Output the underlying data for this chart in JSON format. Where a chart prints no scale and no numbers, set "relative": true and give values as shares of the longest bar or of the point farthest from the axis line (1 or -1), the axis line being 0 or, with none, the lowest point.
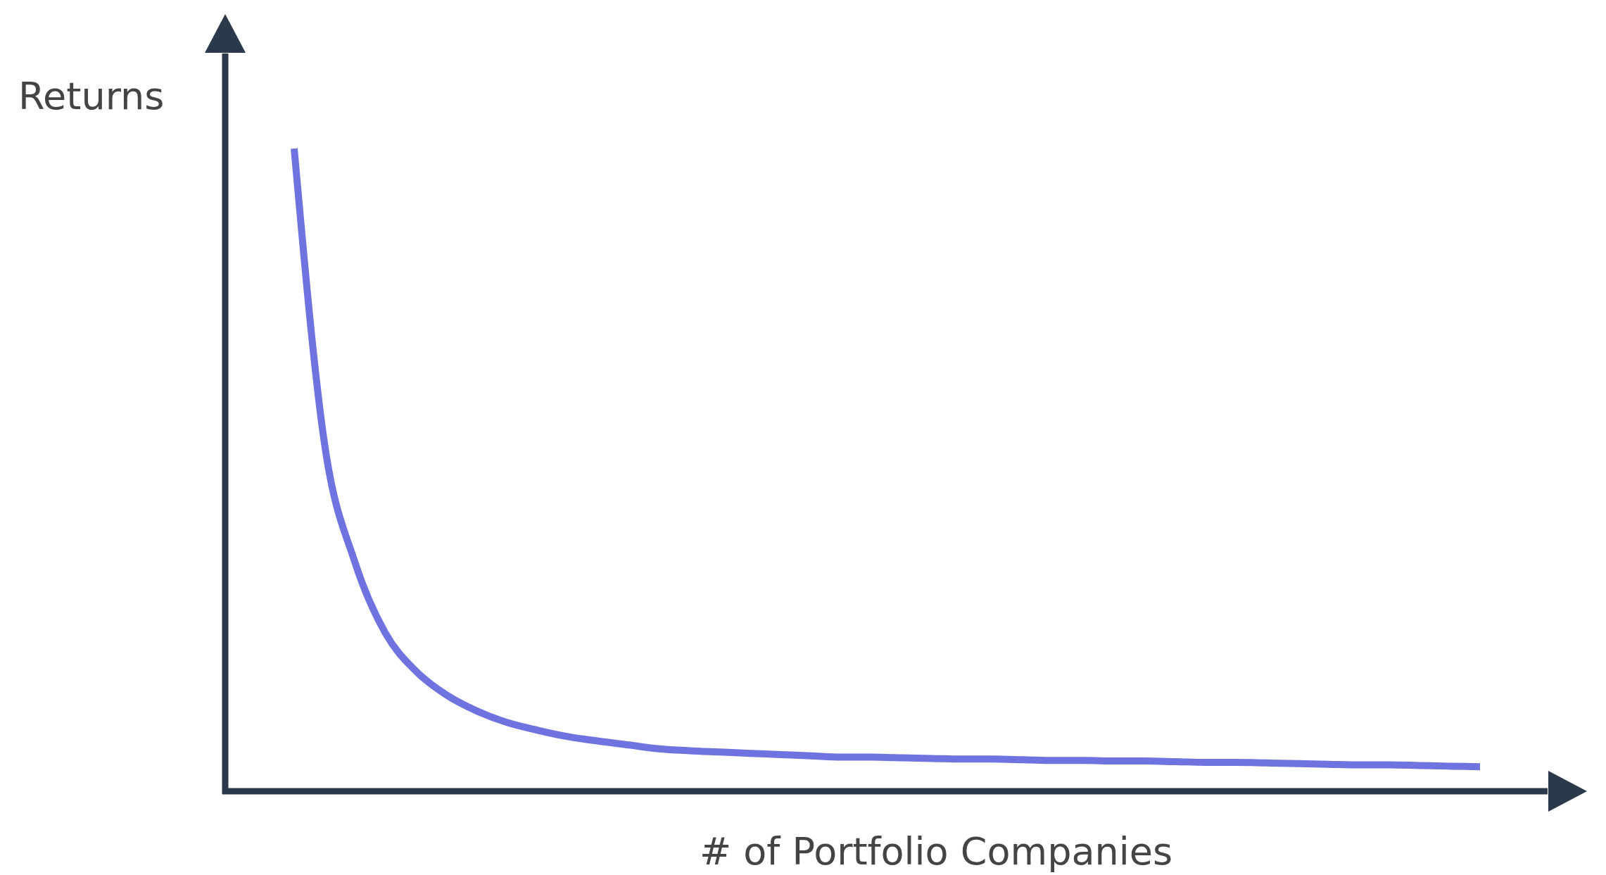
{
  "chart_data": {
    "type": "line",
    "relative": true,
    "ylabel": "Returns",
    "xlabel": "# of Portfolio Companies",
    "categories": [
      null,
      null,
      null,
      null,
      null,
      null,
      null,
      null,
      null,
      null,
      null,
      null,
      null,
      null,
      null,
      null,
      null,
      null,
      null,
      null,
      null,
      null,
      null,
      null,
      null,
      null,
      null,
      null,
      null,
      null,
      null,
      null,
      null,
      null,
      null,
      null,
      null,
      null,
      null,
      null
    ],
    "series": [
      {
        "color": "#6f73e0",
        "values": [
          1.0,
          0.54,
          0.356,
          0.246,
          0.187,
          0.15,
          0.125,
          0.107,
          0.095,
          0.085,
          0.078,
          0.072,
          0.066,
          0.063,
          0.061,
          0.059,
          0.057,
          0.055,
          0.053,
          0.053,
          0.052,
          0.051,
          0.05,
          0.05,
          0.049,
          0.048,
          0.048,
          0.047,
          0.047,
          0.046,
          0.045,
          0.045,
          0.044,
          0.043,
          0.042,
          0.041,
          0.041,
          0.04,
          0.039,
          0.038
        ]
      }
    ]
  }
}
